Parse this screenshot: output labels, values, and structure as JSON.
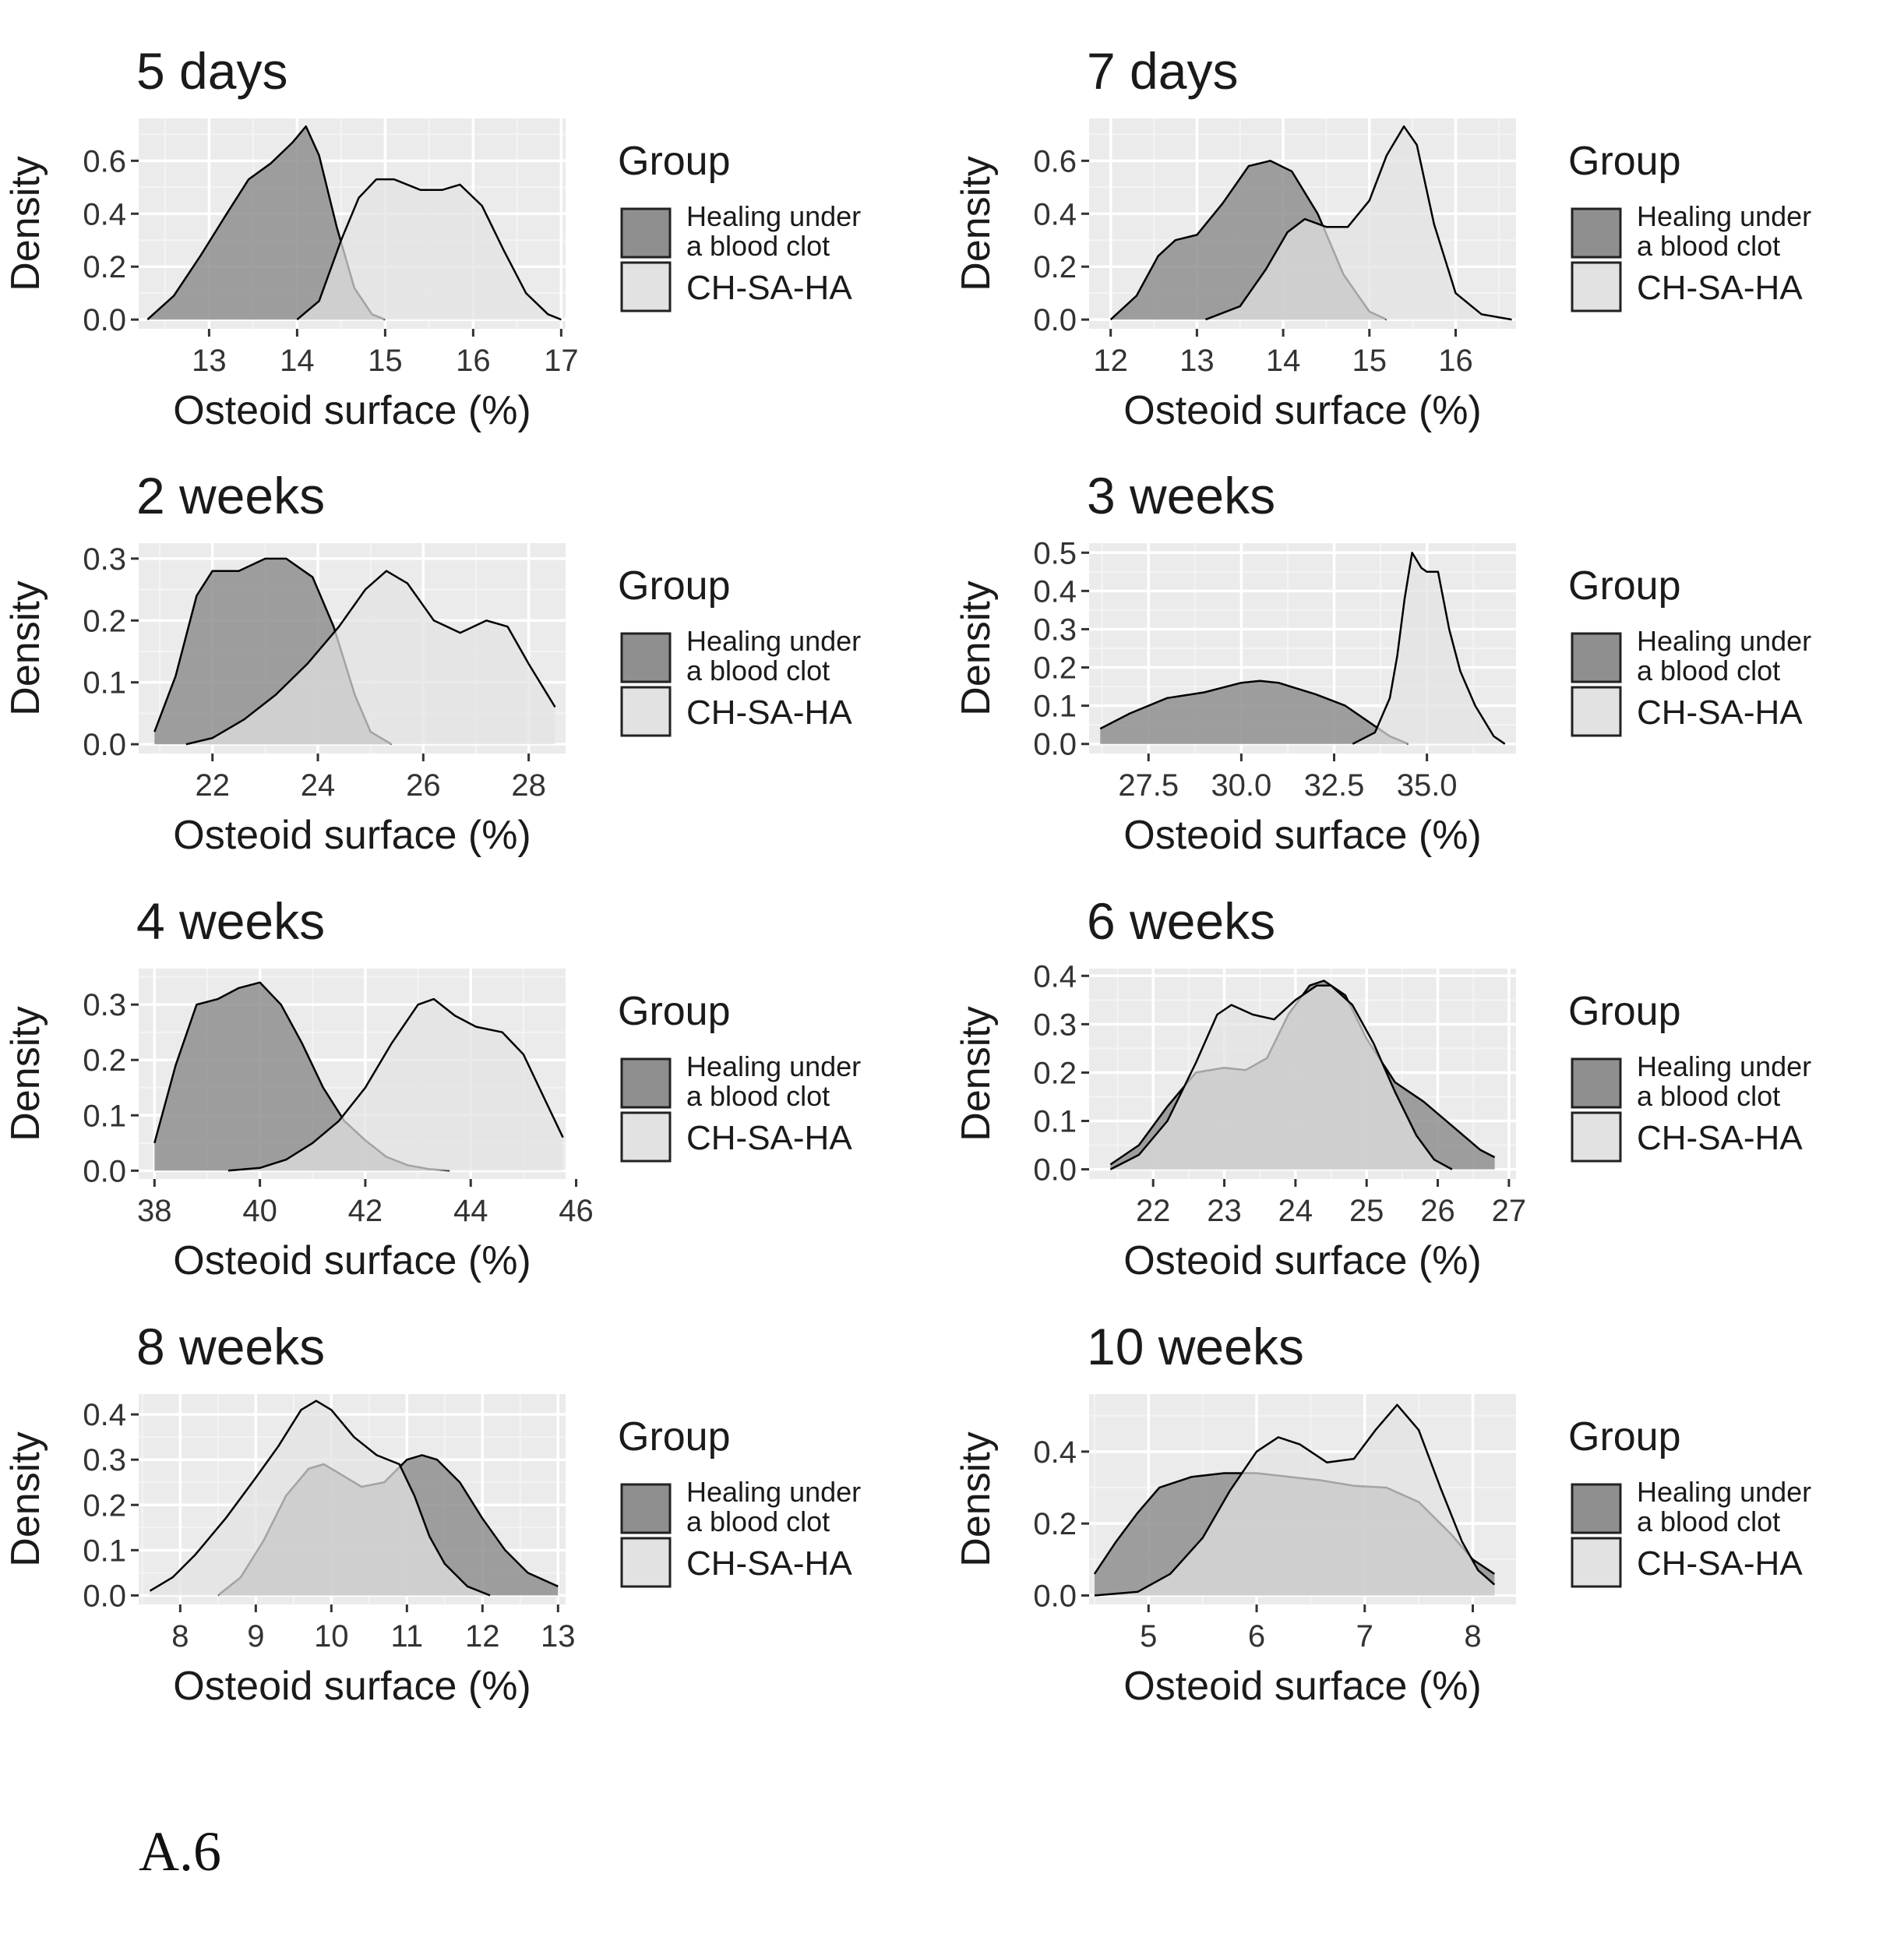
{
  "figure_label": "A.6",
  "colors": {
    "panel_bg": "#ebebeb",
    "grid_major": "#ffffff",
    "grid_minor": "#f4f4f4",
    "clot_fill": "#8f8f8f",
    "chsaha_fill": "#e2e2e2",
    "curve_stroke": "#000000",
    "text": "#1a1a1a",
    "tick_text": "#333333"
  },
  "chart_data": [
    {
      "type": "area",
      "title": "5 days",
      "xlabel": "Osteoid surface (%)",
      "ylabel": "Density",
      "xlim": [
        12.2,
        17.05
      ],
      "ylim": [
        -0.035,
        0.76
      ],
      "xticks": [
        13,
        14,
        15,
        16,
        17
      ],
      "xtick_labels": [
        "13",
        "14",
        "15",
        "16",
        "17"
      ],
      "yticks": [
        0,
        0.2,
        0.4,
        0.6
      ],
      "ytick_labels": [
        "0.0",
        "0.2",
        "0.4",
        "0.6"
      ],
      "legend": {
        "title": "Group",
        "entries": [
          "Healing under a blood clot",
          "CH-SA-HA"
        ],
        "position": "right"
      },
      "series": [
        {
          "name": "Healing under a blood clot",
          "x": [
            12.3,
            12.6,
            12.9,
            13.2,
            13.45,
            13.7,
            13.95,
            14.1,
            14.25,
            14.45,
            14.65,
            14.85,
            15.0
          ],
          "y": [
            0.0,
            0.09,
            0.24,
            0.4,
            0.53,
            0.59,
            0.67,
            0.73,
            0.62,
            0.35,
            0.12,
            0.02,
            0.0
          ]
        },
        {
          "name": "CH-SA-HA",
          "x": [
            14.0,
            14.25,
            14.5,
            14.7,
            14.9,
            15.1,
            15.4,
            15.65,
            15.85,
            16.1,
            16.35,
            16.6,
            16.85,
            17.0
          ],
          "y": [
            0.0,
            0.07,
            0.3,
            0.46,
            0.53,
            0.53,
            0.49,
            0.49,
            0.51,
            0.43,
            0.26,
            0.1,
            0.02,
            0.0
          ]
        }
      ]
    },
    {
      "type": "area",
      "title": "7 days",
      "xlabel": "Osteoid surface (%)",
      "ylabel": "Density",
      "xlim": [
        11.75,
        16.7
      ],
      "ylim": [
        -0.035,
        0.76
      ],
      "xticks": [
        12,
        13,
        14,
        15,
        16
      ],
      "xtick_labels": [
        "12",
        "13",
        "14",
        "15",
        "16"
      ],
      "yticks": [
        0,
        0.2,
        0.4,
        0.6
      ],
      "ytick_labels": [
        "0.0",
        "0.2",
        "0.4",
        "0.6"
      ],
      "legend": {
        "title": "Group",
        "entries": [
          "Healing under a blood clot",
          "CH-SA-HA"
        ],
        "position": "right"
      },
      "series": [
        {
          "name": "Healing under a blood clot",
          "x": [
            12.0,
            12.3,
            12.55,
            12.75,
            13.0,
            13.3,
            13.6,
            13.85,
            14.1,
            14.4,
            14.7,
            15.0,
            15.2
          ],
          "y": [
            0.0,
            0.09,
            0.24,
            0.3,
            0.32,
            0.44,
            0.58,
            0.6,
            0.56,
            0.4,
            0.17,
            0.03,
            0.0
          ]
        },
        {
          "name": "CH-SA-HA",
          "x": [
            13.1,
            13.5,
            13.8,
            14.05,
            14.25,
            14.5,
            14.75,
            15.0,
            15.2,
            15.4,
            15.55,
            15.75,
            16.0,
            16.3,
            16.65
          ],
          "y": [
            0.0,
            0.05,
            0.19,
            0.33,
            0.38,
            0.35,
            0.35,
            0.45,
            0.62,
            0.73,
            0.66,
            0.36,
            0.1,
            0.02,
            0.0
          ]
        }
      ]
    },
    {
      "type": "area",
      "title": "2 weeks",
      "xlabel": "Osteoid surface (%)",
      "ylabel": "Density",
      "xlim": [
        20.6,
        28.7
      ],
      "ylim": [
        -0.015,
        0.325
      ],
      "xticks": [
        22,
        24,
        26,
        28
      ],
      "xtick_labels": [
        "22",
        "24",
        "26",
        "28"
      ],
      "yticks": [
        0,
        0.1,
        0.2,
        0.3
      ],
      "ytick_labels": [
        "0.0",
        "0.1",
        "0.2",
        "0.3"
      ],
      "legend": {
        "title": "Group",
        "entries": [
          "Healing under a blood clot",
          "CH-SA-HA"
        ],
        "position": "right"
      },
      "series": [
        {
          "name": "Healing under a blood clot",
          "x": [
            20.9,
            21.3,
            21.7,
            22.0,
            22.5,
            23.0,
            23.4,
            23.9,
            24.3,
            24.7,
            25.0,
            25.4
          ],
          "y": [
            0.02,
            0.11,
            0.24,
            0.28,
            0.28,
            0.3,
            0.3,
            0.27,
            0.19,
            0.08,
            0.02,
            0.0
          ]
        },
        {
          "name": "CH-SA-HA",
          "x": [
            21.5,
            22.0,
            22.6,
            23.2,
            23.8,
            24.4,
            24.9,
            25.3,
            25.7,
            26.2,
            26.7,
            27.2,
            27.6,
            28.0,
            28.5
          ],
          "y": [
            0.0,
            0.01,
            0.04,
            0.08,
            0.13,
            0.19,
            0.25,
            0.28,
            0.26,
            0.2,
            0.18,
            0.2,
            0.19,
            0.13,
            0.06
          ]
        }
      ]
    },
    {
      "type": "area",
      "title": "3 weeks",
      "xlabel": "Osteoid surface (%)",
      "ylabel": "Density",
      "xlim": [
        25.9,
        37.4
      ],
      "ylim": [
        -0.025,
        0.525
      ],
      "xticks": [
        27.5,
        30.0,
        32.5,
        35.0
      ],
      "xtick_labels": [
        "27.5",
        "30.0",
        "32.5",
        "35.0"
      ],
      "yticks": [
        0,
        0.1,
        0.2,
        0.3,
        0.4,
        0.5
      ],
      "ytick_labels": [
        "0.0",
        "0.1",
        "0.2",
        "0.3",
        "0.4",
        "0.5"
      ],
      "legend": {
        "title": "Group",
        "entries": [
          "Healing under a blood clot",
          "CH-SA-HA"
        ],
        "position": "right"
      },
      "series": [
        {
          "name": "Healing under a blood clot",
          "x": [
            26.2,
            27.0,
            28.0,
            29.0,
            30.0,
            30.5,
            31.0,
            32.0,
            32.8,
            33.4,
            34.0,
            34.5
          ],
          "y": [
            0.04,
            0.08,
            0.12,
            0.135,
            0.16,
            0.165,
            0.16,
            0.13,
            0.1,
            0.06,
            0.02,
            0.0
          ]
        },
        {
          "name": "CH-SA-HA",
          "x": [
            33.0,
            33.6,
            34.0,
            34.2,
            34.4,
            34.6,
            34.85,
            35.0,
            35.3,
            35.6,
            35.9,
            36.3,
            36.8,
            37.1
          ],
          "y": [
            0.0,
            0.03,
            0.12,
            0.23,
            0.38,
            0.5,
            0.46,
            0.45,
            0.45,
            0.3,
            0.19,
            0.1,
            0.02,
            0.0
          ]
        }
      ]
    },
    {
      "type": "area",
      "title": "4 weeks",
      "xlabel": "Osteoid surface (%)",
      "ylabel": "Density",
      "xlim": [
        37.7,
        45.8
      ],
      "ylim": [
        -0.015,
        0.365
      ],
      "xticks": [
        38,
        40,
        42,
        44,
        46
      ],
      "xtick_labels": [
        "38",
        "40",
        "42",
        "44",
        "46"
      ],
      "yticks": [
        0,
        0.1,
        0.2,
        0.3
      ],
      "ytick_labels": [
        "0.0",
        "0.1",
        "0.2",
        "0.3"
      ],
      "legend": {
        "title": "Group",
        "entries": [
          "Healing under a blood clot",
          "CH-SA-HA"
        ],
        "position": "right"
      },
      "series": [
        {
          "name": "Healing under a blood clot",
          "x": [
            38.0,
            38.4,
            38.8,
            39.2,
            39.6,
            40.0,
            40.4,
            40.8,
            41.2,
            41.6,
            42.0,
            42.4,
            42.8,
            43.2,
            43.6
          ],
          "y": [
            0.05,
            0.19,
            0.3,
            0.31,
            0.33,
            0.34,
            0.3,
            0.23,
            0.15,
            0.09,
            0.055,
            0.025,
            0.01,
            0.003,
            0.0
          ]
        },
        {
          "name": "CH-SA-HA",
          "x": [
            39.4,
            40.0,
            40.5,
            41.0,
            41.5,
            42.0,
            42.5,
            43.0,
            43.3,
            43.7,
            44.1,
            44.6,
            45.0,
            45.4,
            45.75
          ],
          "y": [
            0.0,
            0.005,
            0.02,
            0.05,
            0.09,
            0.15,
            0.23,
            0.3,
            0.31,
            0.28,
            0.26,
            0.25,
            0.21,
            0.13,
            0.06
          ]
        }
      ]
    },
    {
      "type": "area",
      "title": "6 weeks",
      "xlabel": "Osteoid surface (%)",
      "ylabel": "Density",
      "xlim": [
        21.1,
        27.1
      ],
      "ylim": [
        -0.02,
        0.415
      ],
      "xticks": [
        22,
        23,
        24,
        25,
        26,
        27
      ],
      "xtick_labels": [
        "22",
        "23",
        "24",
        "25",
        "26",
        "27"
      ],
      "yticks": [
        0,
        0.1,
        0.2,
        0.3,
        0.4
      ],
      "ytick_labels": [
        "0.0",
        "0.1",
        "0.2",
        "0.3",
        "0.4"
      ],
      "legend": {
        "title": "Group",
        "entries": [
          "Healing under a blood clot",
          "CH-SA-HA"
        ],
        "position": "right"
      },
      "series": [
        {
          "name": "Healing under a blood clot",
          "x": [
            21.4,
            21.8,
            22.2,
            22.6,
            23.0,
            23.3,
            23.6,
            23.9,
            24.2,
            24.4,
            24.7,
            25.0,
            25.4,
            25.8,
            26.2,
            26.6,
            26.8
          ],
          "y": [
            0.01,
            0.05,
            0.13,
            0.2,
            0.21,
            0.205,
            0.23,
            0.32,
            0.38,
            0.39,
            0.36,
            0.27,
            0.18,
            0.14,
            0.09,
            0.04,
            0.025
          ]
        },
        {
          "name": "CH-SA-HA",
          "x": [
            21.4,
            21.8,
            22.2,
            22.6,
            22.9,
            23.1,
            23.4,
            23.7,
            24.0,
            24.3,
            24.5,
            24.8,
            25.1,
            25.4,
            25.7,
            25.95,
            26.2
          ],
          "y": [
            0.0,
            0.03,
            0.1,
            0.22,
            0.32,
            0.34,
            0.32,
            0.31,
            0.35,
            0.38,
            0.38,
            0.34,
            0.26,
            0.16,
            0.07,
            0.02,
            0.0
          ]
        }
      ]
    },
    {
      "type": "area",
      "title": "8 weeks",
      "xlabel": "Osteoid surface (%)",
      "ylabel": "Density",
      "xlim": [
        7.45,
        13.1
      ],
      "ylim": [
        -0.02,
        0.445
      ],
      "xticks": [
        8,
        9,
        10,
        11,
        12,
        13
      ],
      "xtick_labels": [
        "8",
        "9",
        "10",
        "11",
        "12",
        "13"
      ],
      "yticks": [
        0,
        0.1,
        0.2,
        0.3,
        0.4
      ],
      "ytick_labels": [
        "0.0",
        "0.1",
        "0.2",
        "0.3",
        "0.4"
      ],
      "legend": {
        "title": "Group",
        "entries": [
          "Healing under a blood clot",
          "CH-SA-HA"
        ],
        "position": "right"
      },
      "series": [
        {
          "name": "Healing under a blood clot",
          "x": [
            8.5,
            8.8,
            9.1,
            9.4,
            9.7,
            9.9,
            10.1,
            10.4,
            10.7,
            11.0,
            11.2,
            11.4,
            11.7,
            12.0,
            12.3,
            12.6,
            13.0
          ],
          "y": [
            0.0,
            0.04,
            0.12,
            0.22,
            0.28,
            0.29,
            0.27,
            0.24,
            0.25,
            0.3,
            0.31,
            0.3,
            0.25,
            0.17,
            0.1,
            0.05,
            0.02
          ]
        },
        {
          "name": "CH-SA-HA",
          "x": [
            7.6,
            7.9,
            8.2,
            8.6,
            9.0,
            9.3,
            9.6,
            9.8,
            10.0,
            10.3,
            10.6,
            10.9,
            11.1,
            11.3,
            11.5,
            11.8,
            12.1
          ],
          "y": [
            0.01,
            0.04,
            0.09,
            0.17,
            0.26,
            0.33,
            0.41,
            0.43,
            0.41,
            0.35,
            0.31,
            0.29,
            0.22,
            0.13,
            0.07,
            0.02,
            0.0
          ]
        }
      ]
    },
    {
      "type": "area",
      "title": "10 weeks",
      "xlabel": "Osteoid surface (%)",
      "ylabel": "Density",
      "xlim": [
        4.45,
        8.4
      ],
      "ylim": [
        -0.025,
        0.56
      ],
      "xticks": [
        5,
        6,
        7,
        8
      ],
      "xtick_labels": [
        "5",
        "6",
        "7",
        "8"
      ],
      "yticks": [
        0,
        0.2,
        0.4
      ],
      "ytick_labels": [
        "0.0",
        "0.2",
        "0.4"
      ],
      "legend": {
        "title": "Group",
        "entries": [
          "Healing under a blood clot",
          "CH-SA-HA"
        ],
        "position": "right"
      },
      "series": [
        {
          "name": "Healing under a blood clot",
          "x": [
            4.5,
            4.7,
            4.9,
            5.1,
            5.4,
            5.7,
            6.0,
            6.3,
            6.6,
            6.9,
            7.2,
            7.5,
            7.8,
            8.0,
            8.2
          ],
          "y": [
            0.06,
            0.15,
            0.23,
            0.3,
            0.33,
            0.34,
            0.34,
            0.33,
            0.32,
            0.305,
            0.3,
            0.26,
            0.17,
            0.1,
            0.06
          ]
        },
        {
          "name": "CH-SA-HA",
          "x": [
            4.5,
            4.9,
            5.2,
            5.5,
            5.75,
            6.0,
            6.2,
            6.4,
            6.65,
            6.9,
            7.1,
            7.3,
            7.5,
            7.7,
            7.9,
            8.05,
            8.2
          ],
          "y": [
            0.0,
            0.01,
            0.06,
            0.16,
            0.29,
            0.4,
            0.44,
            0.42,
            0.37,
            0.38,
            0.46,
            0.53,
            0.46,
            0.3,
            0.15,
            0.07,
            0.03
          ]
        }
      ]
    }
  ]
}
